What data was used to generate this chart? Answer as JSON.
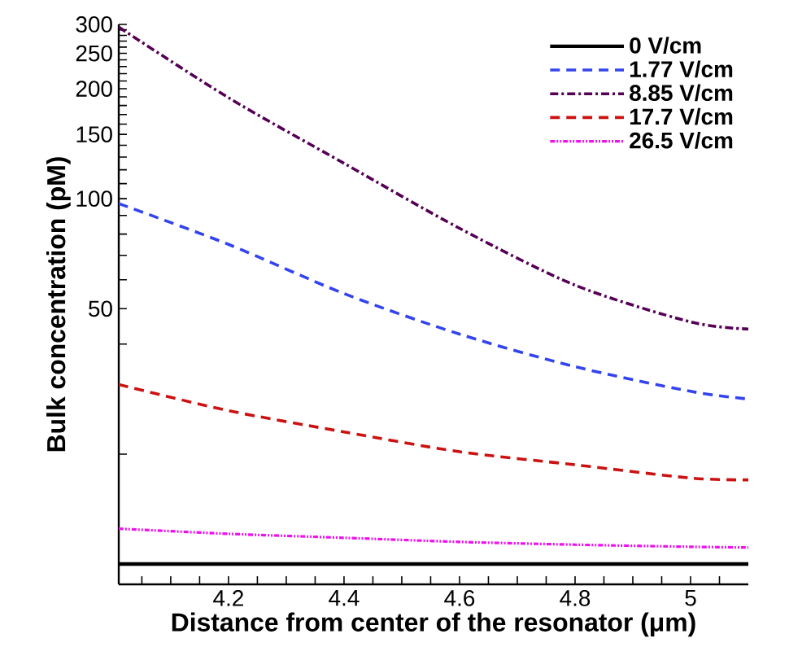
{
  "chart_data": {
    "type": "line",
    "xlabel": "Distance from center of the resonator (μm)",
    "ylabel": "Bulk concentration (pM)",
    "log": "y",
    "legend": "top right",
    "grid": false,
    "xlim": [
      4.01,
      5.1
    ],
    "ylim": [
      8.8,
      300
    ],
    "xticks": [
      {
        "value": 4.05,
        "label": null
      },
      {
        "value": 4.1,
        "label": null
      },
      {
        "value": 4.15,
        "label": null
      },
      4.2,
      {
        "value": 4.25,
        "label": null
      },
      {
        "value": 4.3,
        "label": null
      },
      {
        "value": 4.35,
        "label": null
      },
      4.4,
      {
        "value": 4.45,
        "label": null
      },
      {
        "value": 4.5,
        "label": null
      },
      {
        "value": 4.55,
        "label": null
      },
      4.6,
      {
        "value": 4.65,
        "label": null
      },
      {
        "value": 4.7,
        "label": null
      },
      {
        "value": 4.75,
        "label": null
      },
      4.8,
      {
        "value": 4.85,
        "label": null
      },
      {
        "value": 4.9,
        "label": null
      },
      {
        "value": 4.95,
        "label": null
      },
      5,
      {
        "value": 5.05,
        "label": null
      }
    ],
    "yticks": [
      {
        "value": 20,
        "label": null
      },
      {
        "value": 40,
        "label": null
      },
      50,
      {
        "value": 60,
        "label": null
      },
      {
        "value": 70,
        "label": null
      },
      {
        "value": 80,
        "label": null
      },
      {
        "value": 90,
        "label": null
      },
      100,
      {
        "value": 110,
        "label": null
      },
      {
        "value": 120,
        "label": null
      },
      {
        "value": 130,
        "label": null
      },
      {
        "value": 140,
        "label": null
      },
      150,
      {
        "value": 160,
        "label": null
      },
      {
        "value": 170,
        "label": null
      },
      {
        "value": 180,
        "label": null
      },
      {
        "value": 190,
        "label": null
      },
      200,
      {
        "value": 210,
        "label": null
      },
      {
        "value": 220,
        "label": null
      },
      {
        "value": 230,
        "label": null
      },
      {
        "value": 240,
        "label": null
      },
      250,
      {
        "value": 260,
        "label": null
      },
      {
        "value": 270,
        "label": null
      },
      {
        "value": 280,
        "label": null
      },
      {
        "value": 290,
        "label": null
      },
      300
    ],
    "x": [
      4.01,
      4.2,
      4.4,
      4.6,
      4.8,
      5.0,
      5.1
    ],
    "series": [
      {
        "name": "0 V/cm",
        "color": "#000000",
        "line_style": "solid",
        "values": [
          10,
          10,
          10,
          10,
          10,
          10,
          10
        ]
      },
      {
        "name": "1.77 V/cm",
        "color": "#3344ee",
        "line_style": "dashed",
        "values": [
          97,
          75,
          55,
          42.6,
          34.7,
          29.7,
          28.3
        ]
      },
      {
        "name": "8.85 V/cm",
        "color": "#550055",
        "line_style": "dashdot",
        "values": [
          295,
          189,
          125,
          83,
          58,
          46,
          44
        ]
      },
      {
        "name": "17.7 V/cm",
        "color": "#cc1111",
        "line_style": "dashed",
        "values": [
          31,
          26.3,
          23,
          20.3,
          18.7,
          17.2,
          17
        ]
      },
      {
        "name": "26.5 V/cm",
        "color": "#ee11ee",
        "line_style": "dotted",
        "values": [
          12.5,
          12.1,
          11.8,
          11.5,
          11.3,
          11.15,
          11.1
        ]
      }
    ]
  }
}
